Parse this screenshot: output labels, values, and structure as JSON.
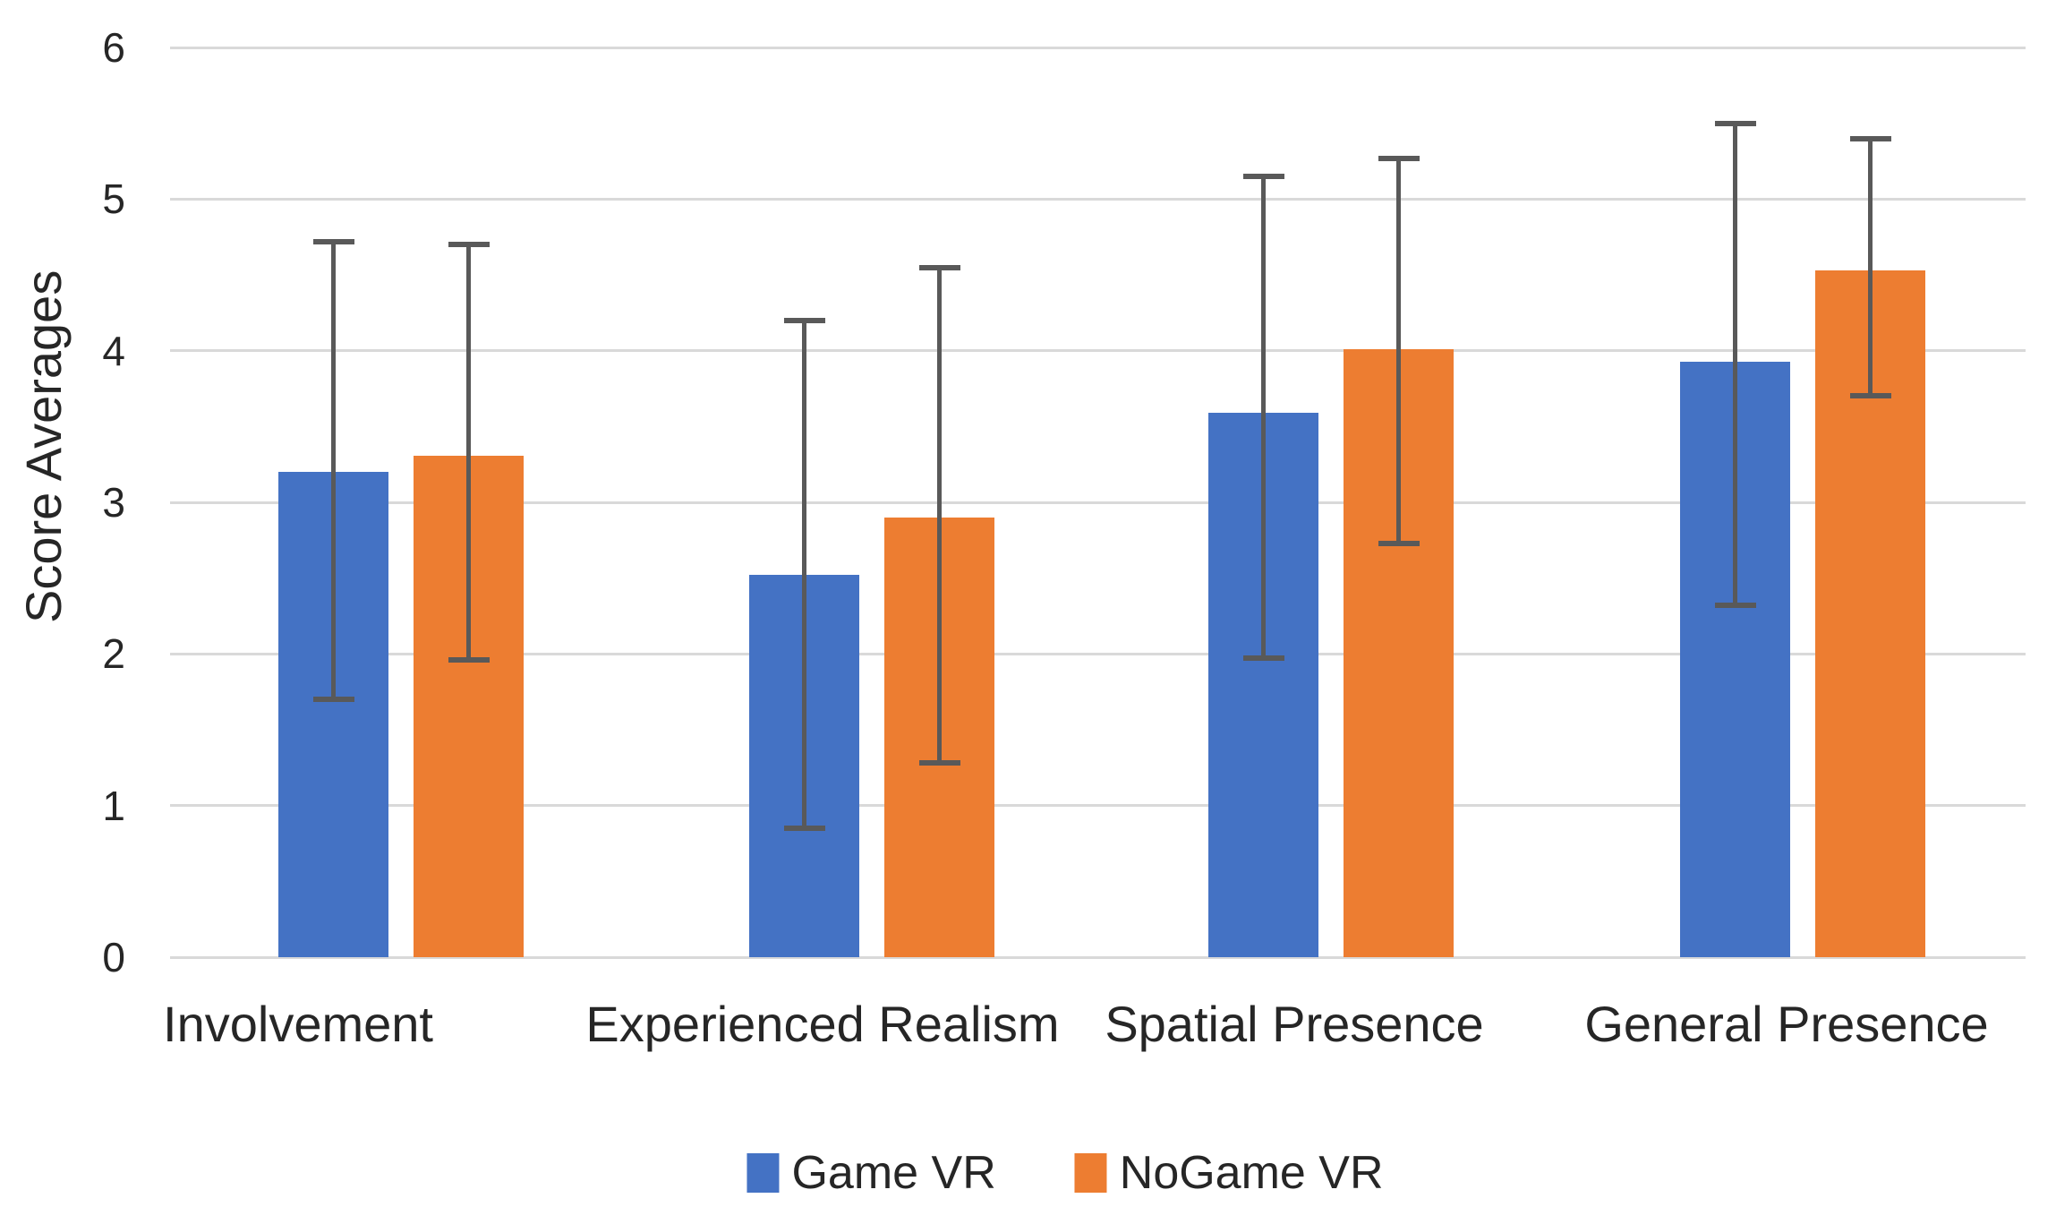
{
  "chart_data": {
    "type": "bar",
    "title": "",
    "xlabel": "",
    "ylabel": "Score Averages",
    "categories": [
      "Involvement",
      "Experienced Realism",
      "Spatial Presence",
      "General Presence"
    ],
    "series": [
      {
        "name": "Game VR",
        "color": "#4472C4",
        "values": [
          3.2,
          2.52,
          3.59,
          3.93
        ],
        "error_low": [
          1.7,
          0.85,
          1.97,
          2.32
        ],
        "error_high": [
          4.72,
          4.2,
          5.15,
          5.5
        ]
      },
      {
        "name": "NoGame VR",
        "color": "#ED7D31",
        "values": [
          3.31,
          2.9,
          4.01,
          4.53
        ],
        "error_low": [
          1.96,
          1.28,
          2.73,
          3.7
        ],
        "error_high": [
          4.7,
          4.55,
          5.27,
          5.4
        ]
      }
    ],
    "ylim": [
      0,
      6
    ],
    "yticks": [
      0,
      1,
      2,
      3,
      4,
      5,
      6
    ],
    "grid": true,
    "error_bars": true,
    "legend_position": "bottom",
    "background": "#FFFFFF",
    "gridline_color": "#D9D9D9",
    "error_bar_color": "#595959",
    "text_color": "#262626"
  }
}
